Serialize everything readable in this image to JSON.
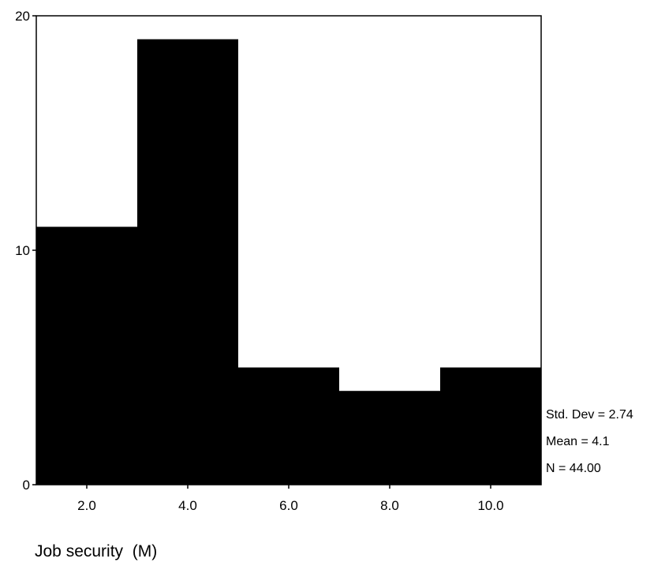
{
  "chart_data": {
    "type": "bar",
    "variant": "histogram",
    "bins": [
      {
        "start": 1,
        "end": 3,
        "count": 11
      },
      {
        "start": 3,
        "end": 5,
        "count": 19
      },
      {
        "start": 5,
        "end": 7,
        "count": 5
      },
      {
        "start": 7,
        "end": 9,
        "count": 4
      },
      {
        "start": 9,
        "end": 11,
        "count": 5
      }
    ],
    "xlim": [
      1,
      11
    ],
    "ylim": [
      0,
      20
    ],
    "x_ticks": [
      {
        "value": 2,
        "label": "2.0"
      },
      {
        "value": 4,
        "label": "4.0"
      },
      {
        "value": 6,
        "label": "6.0"
      },
      {
        "value": 8,
        "label": "8.0"
      },
      {
        "value": 10,
        "label": "10.0"
      }
    ],
    "y_ticks": [
      {
        "value": 0,
        "label": "0"
      },
      {
        "value": 10,
        "label": "10"
      },
      {
        "value": 20,
        "label": "20"
      }
    ],
    "xlabel": "Job security  (M)",
    "ylabel": "",
    "title": "",
    "grid": false,
    "bar_color": "#000000",
    "stats": {
      "std_dev": "Std. Dev = 2.74",
      "mean": "Mean = 4.1",
      "n": "N = 44.00"
    }
  }
}
